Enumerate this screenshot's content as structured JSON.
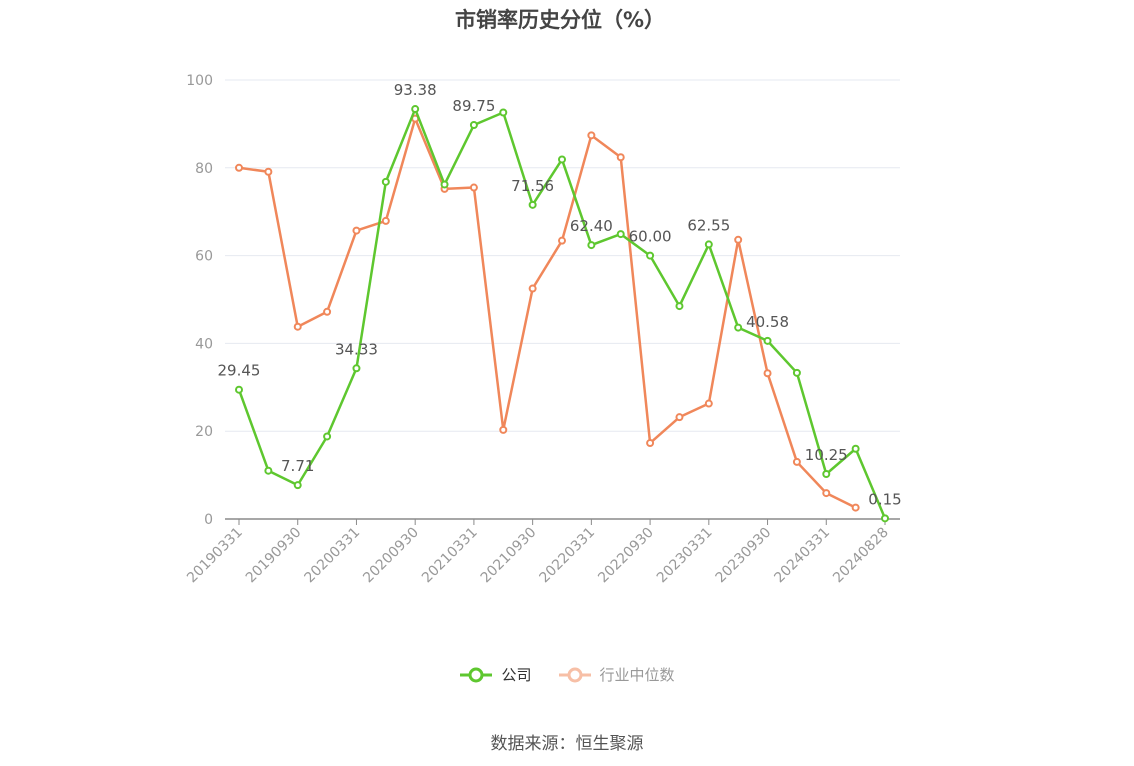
{
  "chart_data": {
    "type": "line",
    "title": "市销率历史分位（%）",
    "source": "数据来源：恒生聚源",
    "xlabel": "",
    "ylabel": "",
    "ylim": [
      0,
      100
    ],
    "yticks": [
      0,
      20,
      40,
      60,
      80,
      100
    ],
    "grid": true,
    "legend_position": "bottom",
    "x": [
      "20190331",
      "20190630",
      "20190930",
      "20191231",
      "20200331",
      "20200630",
      "20200930",
      "20201231",
      "20210331",
      "20210630",
      "20210930",
      "20211231",
      "20220331",
      "20220630",
      "20220930",
      "20221231",
      "20230331",
      "20230630",
      "20230930",
      "20231231",
      "20240331",
      "20240630",
      "20240828"
    ],
    "xtick_labels": [
      "20190331",
      "20190930",
      "20200331",
      "20200930",
      "20210331",
      "20210930",
      "20220331",
      "20220930",
      "20230331",
      "20230930",
      "20240331",
      "20240828"
    ],
    "series": [
      {
        "name": "公司",
        "color": "#5ec72f",
        "values": [
          29.45,
          11.0,
          7.71,
          18.8,
          34.33,
          76.8,
          93.38,
          76.2,
          89.75,
          92.6,
          71.56,
          81.9,
          62.4,
          64.9,
          60.0,
          48.5,
          62.55,
          43.6,
          40.58,
          33.3,
          10.25,
          16.0,
          0.15
        ],
        "point_labels": [
          "29.45",
          "",
          "7.71",
          "",
          "34.33",
          "",
          "93.38",
          "",
          "89.75",
          "",
          "71.56",
          "",
          "62.40",
          "",
          "60.00",
          "",
          "62.55",
          "",
          "40.58",
          "",
          "10.25",
          "",
          "0.15"
        ]
      },
      {
        "name": "行业中位数",
        "color": "#f0875a",
        "values": [
          80.0,
          79.1,
          43.8,
          47.2,
          65.7,
          67.9,
          91.2,
          75.2,
          75.5,
          20.3,
          52.5,
          63.4,
          87.4,
          82.4,
          17.3,
          23.2,
          26.3,
          63.6,
          33.2,
          13.0,
          5.9,
          2.6,
          null
        ]
      }
    ]
  }
}
